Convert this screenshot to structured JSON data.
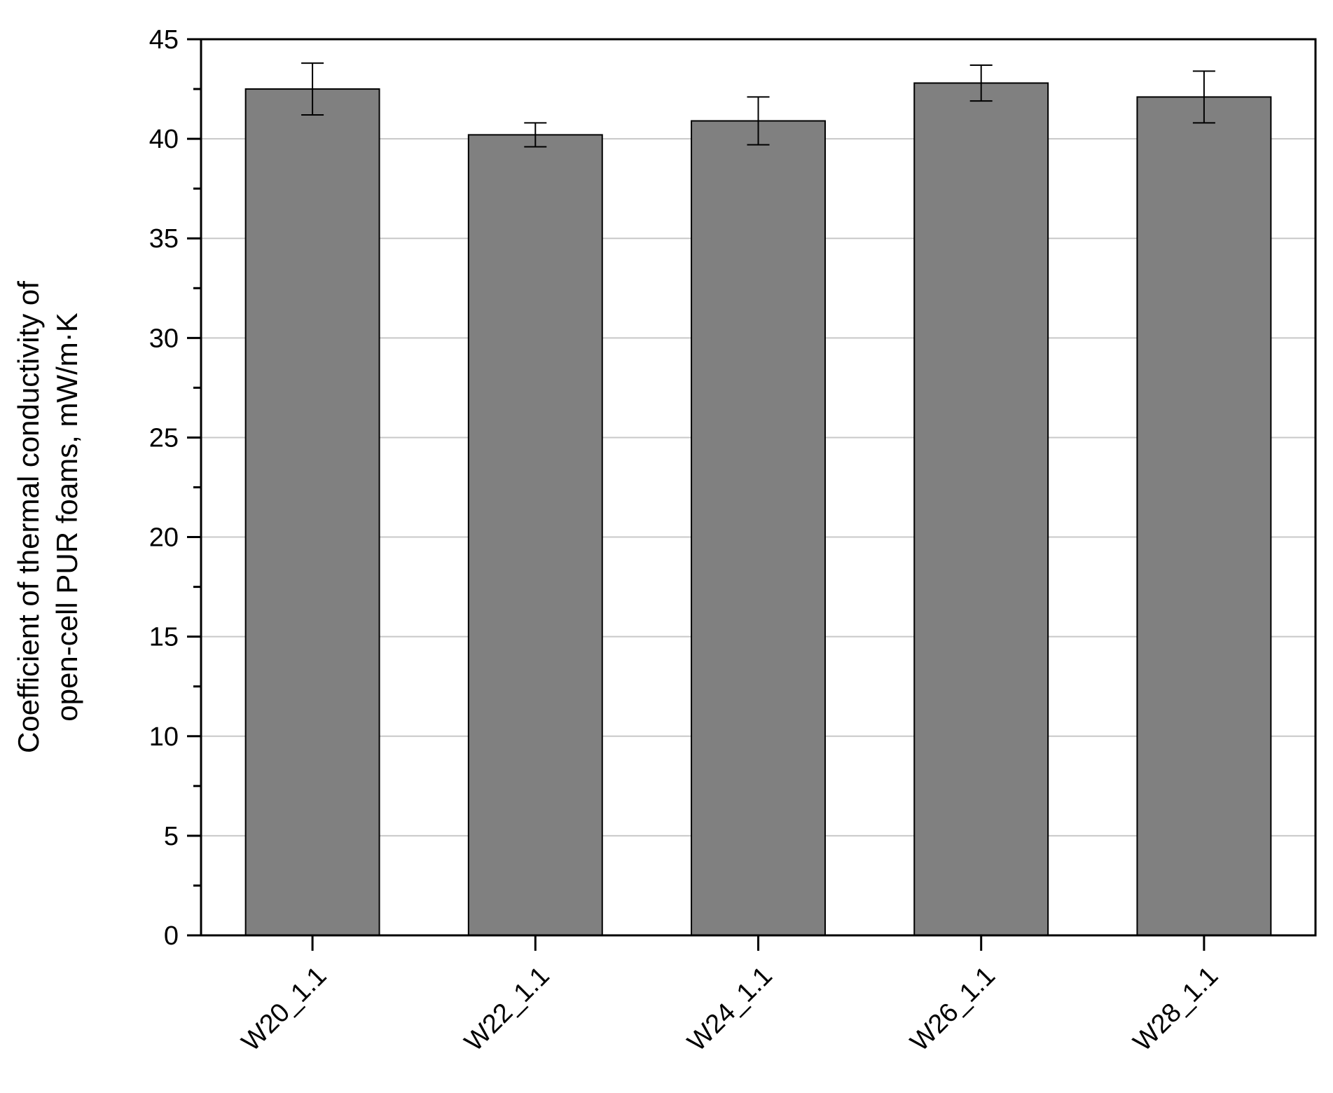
{
  "chart_data": {
    "type": "bar",
    "title": "",
    "xlabel": "",
    "ylabel_lines": [
      "Coefficient of thermal conductivity of",
      "open-cell PUR foams, mW/m·K"
    ],
    "categories": [
      "W20_1.1",
      "W22_1.1",
      "W24_1.1",
      "W26_1.1",
      "W28_1.1"
    ],
    "values": [
      42.5,
      40.2,
      40.9,
      42.8,
      42.1
    ],
    "errors": [
      1.3,
      0.6,
      1.2,
      0.9,
      1.3
    ],
    "ylim": [
      0,
      45
    ],
    "yticks": [
      0,
      5,
      10,
      15,
      20,
      25,
      30,
      35,
      40,
      45
    ],
    "grid": true,
    "legend": "none",
    "colors": {
      "bar_fill": "#808080",
      "bar_stroke": "#000000",
      "grid": "#c8c8c8",
      "axis": "#000000"
    }
  }
}
